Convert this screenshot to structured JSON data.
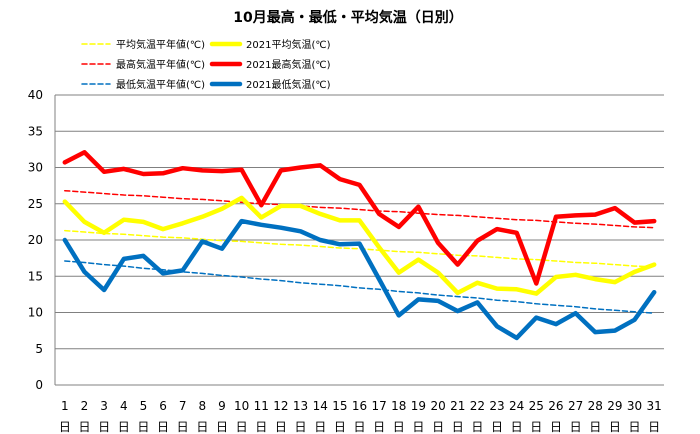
{
  "chart_data": {
    "type": "line",
    "title": "10月最高・最低・平均気温（日別）",
    "xlabel": "",
    "ylabel": "",
    "ylim": [
      0,
      40
    ],
    "ytick_step": 5,
    "grid": "horizontal",
    "legend_position": "top",
    "x": [
      "1",
      "2",
      "3",
      "4",
      "5",
      "6",
      "7",
      "8",
      "9",
      "10",
      "11",
      "12",
      "13",
      "14",
      "15",
      "16",
      "17",
      "18",
      "19",
      "20",
      "21",
      "22",
      "23",
      "24",
      "25",
      "26",
      "27",
      "28",
      "29",
      "30",
      "31"
    ],
    "x_suffix": "日",
    "series": [
      {
        "name": "平均気温平年値(℃)",
        "color": "#FFFF00",
        "style": "dashed",
        "values": [
          21.3,
          21.1,
          20.9,
          20.8,
          20.6,
          20.4,
          20.3,
          20.1,
          19.9,
          19.8,
          19.6,
          19.4,
          19.3,
          19.1,
          18.9,
          18.8,
          18.6,
          18.4,
          18.3,
          18.1,
          17.9,
          17.8,
          17.6,
          17.4,
          17.3,
          17.1,
          16.9,
          16.8,
          16.6,
          16.4,
          16.3
        ]
      },
      {
        "name": "2021平均気温(℃)",
        "color": "#FFFF00",
        "style": "solid",
        "values": [
          25.3,
          22.5,
          21.0,
          22.8,
          22.5,
          21.5,
          22.3,
          23.2,
          24.3,
          25.8,
          23.1,
          24.7,
          24.7,
          23.6,
          22.7,
          22.7,
          19.0,
          15.5,
          17.3,
          15.5,
          12.7,
          14.1,
          13.3,
          13.2,
          12.6,
          14.9,
          15.2,
          14.6,
          14.2,
          15.6,
          16.6
        ]
      },
      {
        "name": "最高気温平年値(℃)",
        "color": "#FF0000",
        "style": "dashed",
        "values": [
          26.8,
          26.6,
          26.4,
          26.2,
          26.1,
          25.9,
          25.7,
          25.6,
          25.4,
          25.2,
          25.0,
          24.9,
          24.7,
          24.5,
          24.4,
          24.2,
          24.0,
          23.9,
          23.7,
          23.5,
          23.4,
          23.2,
          23.0,
          22.8,
          22.7,
          22.5,
          22.3,
          22.2,
          22.0,
          21.8,
          21.7
        ]
      },
      {
        "name": "2021最高気温(℃)",
        "color": "#FF0000",
        "style": "solid",
        "values": [
          30.7,
          32.1,
          29.4,
          29.8,
          29.1,
          29.2,
          29.9,
          29.6,
          29.5,
          29.7,
          24.8,
          29.6,
          30.0,
          30.3,
          28.4,
          27.6,
          23.6,
          21.8,
          24.6,
          19.6,
          16.6,
          19.9,
          21.5,
          21.0,
          14.0,
          23.2,
          23.4,
          23.5,
          24.4,
          22.4,
          22.6
        ]
      },
      {
        "name": "最低気温平年値(℃)",
        "color": "#0070C0",
        "style": "dashed",
        "values": [
          17.1,
          16.9,
          16.6,
          16.4,
          16.1,
          15.9,
          15.6,
          15.4,
          15.1,
          14.9,
          14.6,
          14.4,
          14.1,
          13.9,
          13.7,
          13.4,
          13.2,
          12.9,
          12.7,
          12.4,
          12.2,
          12.0,
          11.7,
          11.5,
          11.2,
          11.0,
          10.8,
          10.5,
          10.3,
          10.1,
          9.9
        ]
      },
      {
        "name": "2021最低気温(℃)",
        "color": "#0070C0",
        "style": "solid",
        "values": [
          20.0,
          15.6,
          13.1,
          17.4,
          17.8,
          15.4,
          15.8,
          19.8,
          18.8,
          22.6,
          22.1,
          21.7,
          21.2,
          20.0,
          19.4,
          19.5,
          14.6,
          9.6,
          11.8,
          11.6,
          10.2,
          11.4,
          8.1,
          6.5,
          9.3,
          8.4,
          9.9,
          7.3,
          7.5,
          9.0,
          12.8
        ]
      }
    ]
  }
}
